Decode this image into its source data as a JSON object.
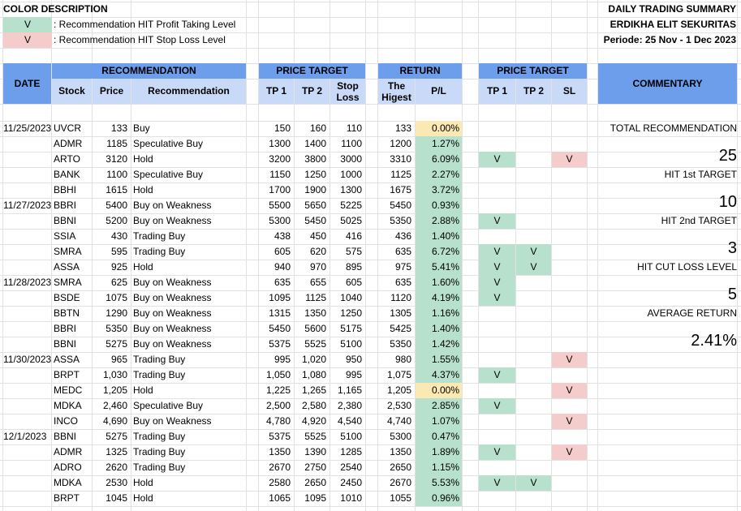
{
  "legend": {
    "title": "COLOR DESCRIPTION",
    "items": [
      {
        "mark": "V",
        "color": "#b7e1cd",
        "text": ": Recommendation HIT Profit Taking Level"
      },
      {
        "mark": "V",
        "color": "#f4cccc",
        "text": ": Recommendation HIT Stop Loss Level"
      }
    ]
  },
  "report": {
    "title": "DAILY TRADING SUMMARY",
    "company": "ERDIKHA ELIT SEKURITAS",
    "period": "Periode:  25 Nov - 1 Dec 2023"
  },
  "headers": {
    "date": "DATE",
    "recommendation_group": "RECOMMENDATION",
    "price_target_group": "PRICE TARGET",
    "return_group": "RETURN",
    "hit_group": "PRICE TARGET",
    "commentary": "COMMENTARY",
    "stock": "Stock",
    "price": "Price",
    "recommendation": "Recommendation",
    "tp1": "TP 1",
    "tp2": "TP 2",
    "stop_loss": "Stop Loss",
    "highest": "The Higest",
    "pl": "P/L",
    "hit_tp1": "TP 1",
    "hit_tp2": "TP 2",
    "hit_sl": "SL"
  },
  "rows": [
    {
      "date": "11/25/2023",
      "stock": "UVCR",
      "price": "133",
      "rec": "Buy",
      "tp1": "150",
      "tp2": "160",
      "sl": "110",
      "high": "133",
      "pl": "0.00%",
      "pl_color": "yellow",
      "h1": "",
      "h2": "",
      "hs": ""
    },
    {
      "date": "",
      "stock": "ADMR",
      "price": "1185",
      "rec": "Speculative Buy",
      "tp1": "1300",
      "tp2": "1400",
      "sl": "1100",
      "high": "1200",
      "pl": "1.27%",
      "pl_color": "green",
      "h1": "",
      "h2": "",
      "hs": ""
    },
    {
      "date": "",
      "stock": "ARTO",
      "price": "3120",
      "rec": "Hold",
      "tp1": "3200",
      "tp2": "3800",
      "sl": "3000",
      "high": "3310",
      "pl": "6.09%",
      "pl_color": "green",
      "h1": "V",
      "h2": "",
      "hs": "V"
    },
    {
      "date": "",
      "stock": "BANK",
      "price": "1100",
      "rec": "Speculative Buy",
      "tp1": "1150",
      "tp2": "1250",
      "sl": "1000",
      "high": "1125",
      "pl": "2.27%",
      "pl_color": "green",
      "h1": "",
      "h2": "",
      "hs": ""
    },
    {
      "date": "",
      "stock": "BBHI",
      "price": "1615",
      "rec": "Hold",
      "tp1": "1700",
      "tp2": "1900",
      "sl": "1300",
      "high": "1675",
      "pl": "3.72%",
      "pl_color": "green",
      "h1": "",
      "h2": "",
      "hs": ""
    },
    {
      "date": "11/27/2023",
      "stock": "BBRI",
      "price": "5400",
      "rec": "Buy on Weakness",
      "tp1": "5500",
      "tp2": "5650",
      "sl": "5225",
      "high": "5450",
      "pl": "0.93%",
      "pl_color": "green",
      "h1": "",
      "h2": "",
      "hs": ""
    },
    {
      "date": "",
      "stock": "BBNI",
      "price": "5200",
      "rec": "Buy on Weakness",
      "tp1": "5300",
      "tp2": "5450",
      "sl": "5025",
      "high": "5350",
      "pl": "2.88%",
      "pl_color": "green",
      "h1": "V",
      "h2": "",
      "hs": ""
    },
    {
      "date": "",
      "stock": "SSIA",
      "price": "430",
      "rec": "Trading Buy",
      "tp1": "438",
      "tp2": "450",
      "sl": "416",
      "high": "436",
      "pl": "1.40%",
      "pl_color": "green",
      "h1": "",
      "h2": "",
      "hs": ""
    },
    {
      "date": "",
      "stock": "SMRA",
      "price": "595",
      "rec": "Trading Buy",
      "tp1": "605",
      "tp2": "620",
      "sl": "575",
      "high": "635",
      "pl": "6.72%",
      "pl_color": "green",
      "h1": "V",
      "h2": "V",
      "hs": ""
    },
    {
      "date": "",
      "stock": "ASSA",
      "price": "925",
      "rec": "Hold",
      "tp1": "940",
      "tp2": "970",
      "sl": "895",
      "high": "975",
      "pl": "5.41%",
      "pl_color": "green",
      "h1": "V",
      "h2": "V",
      "hs": ""
    },
    {
      "date": "11/28/2023",
      "stock": "SMRA",
      "price": "625",
      "rec": "Buy on Weakness",
      "tp1": "635",
      "tp2": "655",
      "sl": "605",
      "high": "635",
      "pl": "1.60%",
      "pl_color": "green",
      "h1": "V",
      "h2": "",
      "hs": ""
    },
    {
      "date": "",
      "stock": "BSDE",
      "price": "1075",
      "rec": "Buy on Weakness",
      "tp1": "1095",
      "tp2": "1125",
      "sl": "1040",
      "high": "1120",
      "pl": "4.19%",
      "pl_color": "green",
      "h1": "V",
      "h2": "",
      "hs": ""
    },
    {
      "date": "",
      "stock": "BBTN",
      "price": "1290",
      "rec": "Buy on Weakness",
      "tp1": "1315",
      "tp2": "1350",
      "sl": "1250",
      "high": "1305",
      "pl": "1.16%",
      "pl_color": "green",
      "h1": "",
      "h2": "",
      "hs": ""
    },
    {
      "date": "",
      "stock": "BBRI",
      "price": "5350",
      "rec": "Buy on Weakness",
      "tp1": "5450",
      "tp2": "5600",
      "sl": "5175",
      "high": "5425",
      "pl": "1.40%",
      "pl_color": "green",
      "h1": "",
      "h2": "",
      "hs": ""
    },
    {
      "date": "",
      "stock": "BBNI",
      "price": "5275",
      "rec": "Buy on Weakness",
      "tp1": "5375",
      "tp2": "5525",
      "sl": "5100",
      "high": "5350",
      "pl": "1.42%",
      "pl_color": "green",
      "h1": "",
      "h2": "",
      "hs": ""
    },
    {
      "date": "11/30/2023",
      "stock": "ASSA",
      "price": "965",
      "rec": "Trading Buy",
      "tp1": "995",
      "tp2": "1,020",
      "sl": "950",
      "high": "980",
      "pl": "1.55%",
      "pl_color": "green",
      "h1": "",
      "h2": "",
      "hs": "V"
    },
    {
      "date": "",
      "stock": "BRPT",
      "price": "1,030",
      "rec": "Trading Buy",
      "tp1": "1,050",
      "tp2": "1,080",
      "sl": "995",
      "high": "1,075",
      "pl": "4.37%",
      "pl_color": "green",
      "h1": "V",
      "h2": "",
      "hs": ""
    },
    {
      "date": "",
      "stock": "MEDC",
      "price": "1,205",
      "rec": "Hold",
      "tp1": "1,225",
      "tp2": "1,265",
      "sl": "1,165",
      "high": "1,205",
      "pl": "0.00%",
      "pl_color": "yellow",
      "h1": "",
      "h2": "",
      "hs": "V"
    },
    {
      "date": "",
      "stock": "MDKA",
      "price": "2,460",
      "rec": "Speculative Buy",
      "tp1": "2,500",
      "tp2": "2,580",
      "sl": "2,380",
      "high": "2,530",
      "pl": "2.85%",
      "pl_color": "green",
      "h1": "V",
      "h2": "",
      "hs": ""
    },
    {
      "date": "",
      "stock": "INCO",
      "price": "4,690",
      "rec": "Buy on Weakness",
      "tp1": "4,780",
      "tp2": "4,920",
      "sl": "4,540",
      "high": "4,740",
      "pl": "1.07%",
      "pl_color": "green",
      "h1": "",
      "h2": "",
      "hs": "V"
    },
    {
      "date": "12/1/2023",
      "stock": "BBNI",
      "price": "5275",
      "rec": "Trading Buy",
      "tp1": "5375",
      "tp2": "5525",
      "sl": "5100",
      "high": "5300",
      "pl": "0.47%",
      "pl_color": "green",
      "h1": "",
      "h2": "",
      "hs": ""
    },
    {
      "date": "",
      "stock": "ADMR",
      "price": "1325",
      "rec": "Trading Buy",
      "tp1": "1350",
      "tp2": "1390",
      "sl": "1285",
      "high": "1350",
      "pl": "1.89%",
      "pl_color": "green",
      "h1": "V",
      "h2": "",
      "hs": "V"
    },
    {
      "date": "",
      "stock": "ADRO",
      "price": "2620",
      "rec": "Trading Buy",
      "tp1": "2670",
      "tp2": "2750",
      "sl": "2540",
      "high": "2650",
      "pl": "1.15%",
      "pl_color": "green",
      "h1": "",
      "h2": "",
      "hs": ""
    },
    {
      "date": "",
      "stock": "MDKA",
      "price": "2530",
      "rec": "Hold",
      "tp1": "2580",
      "tp2": "2650",
      "sl": "2450",
      "high": "2670",
      "pl": "5.53%",
      "pl_color": "green",
      "h1": "V",
      "h2": "V",
      "hs": ""
    },
    {
      "date": "",
      "stock": "BRPT",
      "price": "1045",
      "rec": "Hold",
      "tp1": "1065",
      "tp2": "1095",
      "sl": "1010",
      "high": "1055",
      "pl": "0.96%",
      "pl_color": "green",
      "h1": "",
      "h2": "",
      "hs": ""
    }
  ],
  "commentary": {
    "total_label": "TOTAL RECOMMENDATION",
    "total_value": "25",
    "hit1_label": "HIT 1st TARGET",
    "hit1_value": "10",
    "hit2_label": "HIT 2nd TARGET",
    "hit2_value": "3",
    "cut_label": "HIT CUT LOSS LEVEL",
    "cut_value": "5",
    "avg_label": "AVERAGE RETURN",
    "avg_value": "2.41%"
  }
}
